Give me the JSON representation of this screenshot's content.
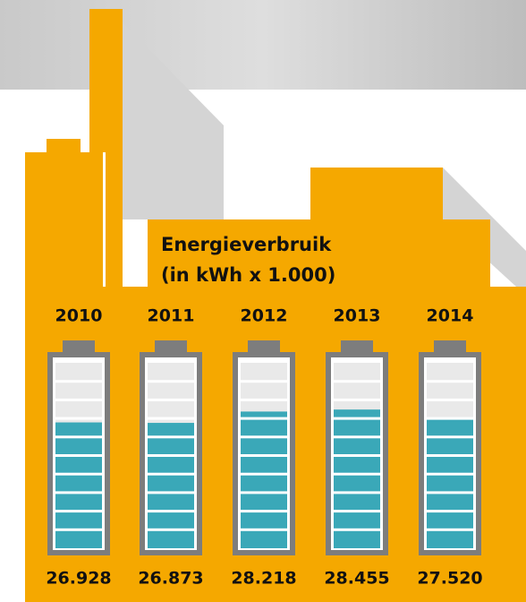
{
  "chart_data": {
    "type": "bar",
    "title": "Energieverbruik",
    "subtitle": "(in kWh x 1.000)",
    "categories": [
      "2010",
      "2011",
      "2012",
      "2013",
      "2014"
    ],
    "values": [
      26928,
      26873,
      28218,
      28455,
      27520
    ],
    "value_labels": [
      "26.928",
      "26.873",
      "28.218",
      "28.455",
      "27.520"
    ],
    "color": "#3aa8b8",
    "ylim": [
      12000,
      34000
    ]
  }
}
